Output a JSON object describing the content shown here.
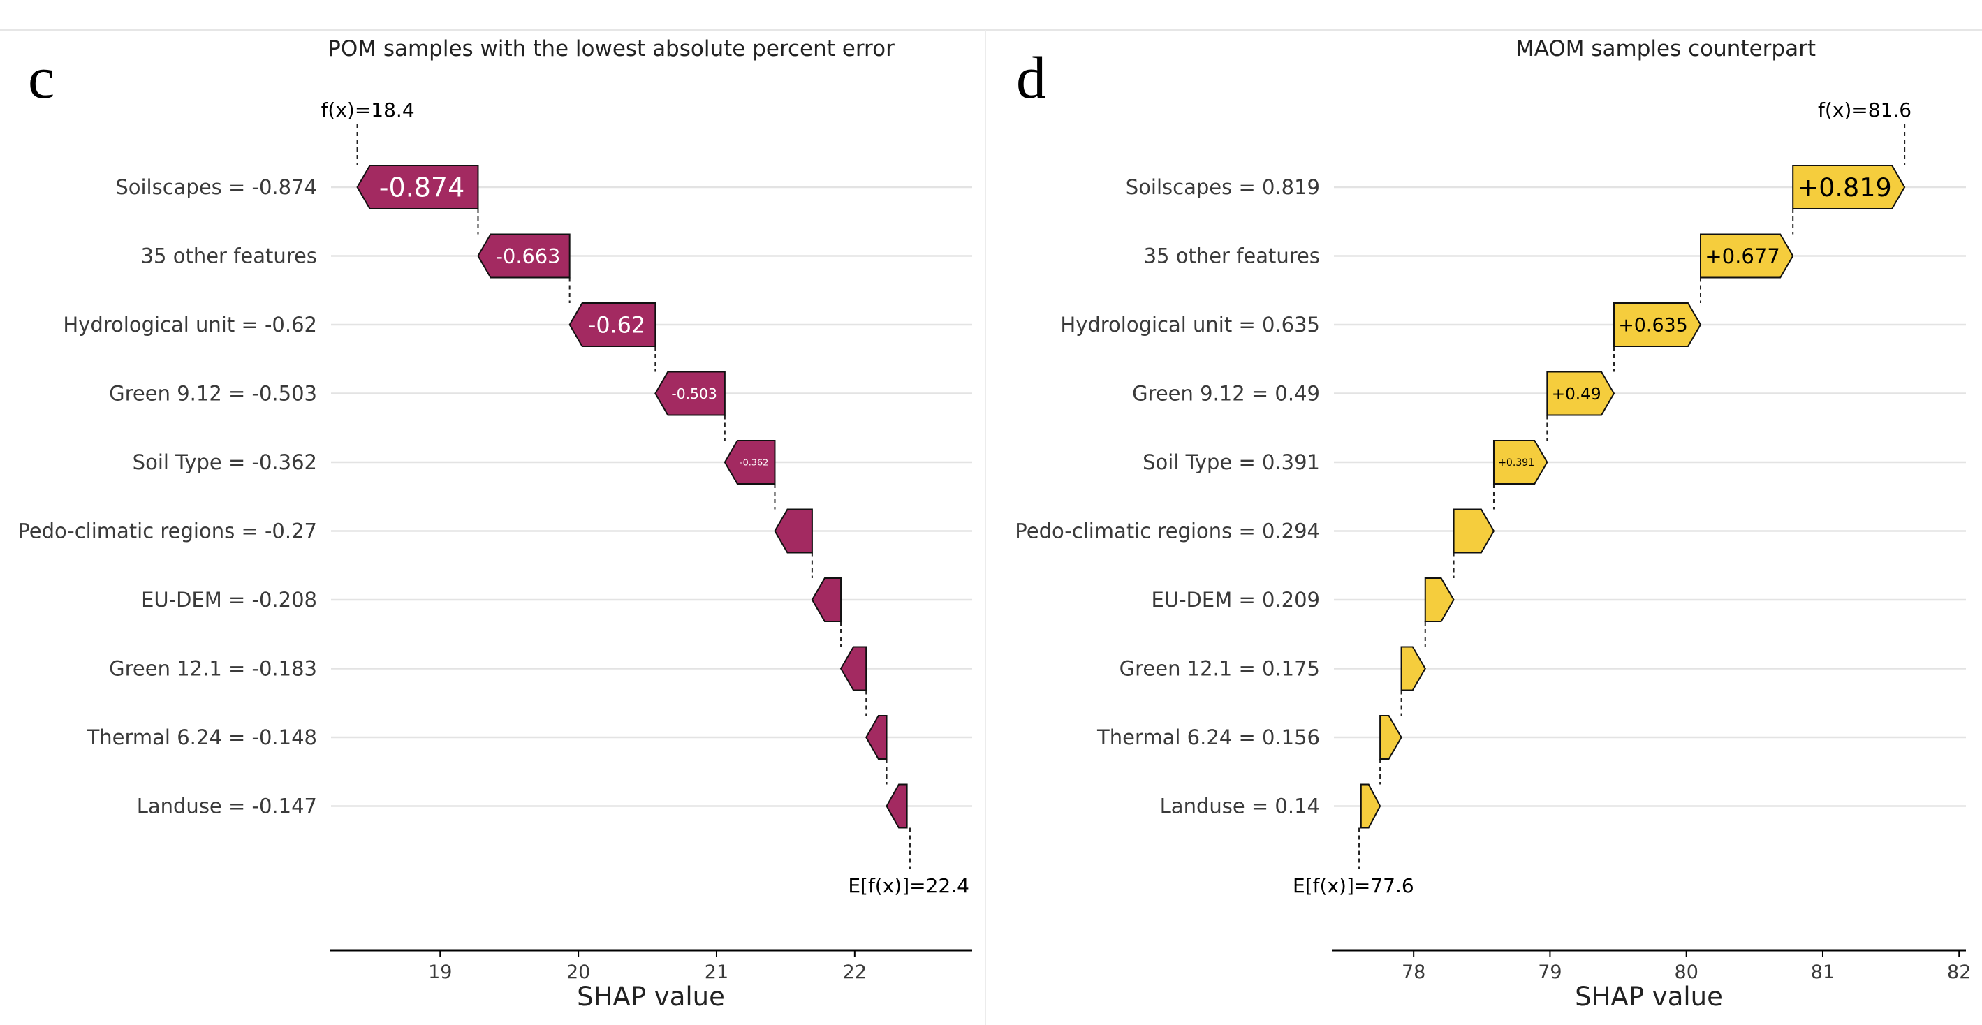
{
  "chart_data": [
    {
      "type": "waterfall",
      "panel_letter": "c",
      "title": "POM  samples with the lowest absolute percent error",
      "xlabel": "SHAP value",
      "xlim": [
        18.2,
        22.85
      ],
      "xticks": [
        "19",
        "20",
        "21",
        "22"
      ],
      "tick_values": [
        19,
        20,
        21,
        22
      ],
      "fx_label": "f(x)=18.4",
      "ex_label": "E[f(x)]=22.4",
      "fx": 18.4,
      "base": 22.4,
      "bar_color": "#a32a61",
      "features": [
        {
          "label": "Soilscapes = -0.874",
          "value": -0.874,
          "bar_text": "-0.874"
        },
        {
          "label": "35 other features",
          "value": -0.663,
          "bar_text": "-0.663"
        },
        {
          "label": "Hydrological unit = -0.62",
          "value": -0.62,
          "bar_text": "-0.62"
        },
        {
          "label": "Green 9.12 = -0.503",
          "value": -0.503,
          "bar_text": "-0.503"
        },
        {
          "label": "Soil Type = -0.362",
          "value": -0.362,
          "bar_text": "-0.362"
        },
        {
          "label": "Pedo-climatic regions = -0.27",
          "value": -0.27,
          "bar_text": ""
        },
        {
          "label": "EU-DEM = -0.208",
          "value": -0.208,
          "bar_text": ""
        },
        {
          "label": "Green 12.1 = -0.183",
          "value": -0.183,
          "bar_text": ""
        },
        {
          "label": "Thermal 6.24 = -0.148",
          "value": -0.148,
          "bar_text": ""
        },
        {
          "label": "Landuse = -0.147",
          "value": -0.147,
          "bar_text": ""
        }
      ]
    },
    {
      "type": "waterfall",
      "panel_letter": "d",
      "title": "MAOM samples counterpart",
      "xlabel": "SHAP value",
      "xlim": [
        77.4,
        82.05
      ],
      "xticks": [
        "78",
        "79",
        "80",
        "81",
        "82"
      ],
      "tick_values": [
        78,
        79,
        80,
        81,
        82
      ],
      "fx_label": "f(x)=81.6",
      "ex_label": "E[f(x)]=77.6",
      "fx": 81.6,
      "base": 77.6,
      "bar_color": "#f5cd3d",
      "features": [
        {
          "label": "Soilscapes = 0.819",
          "value": 0.819,
          "bar_text": "+0.819"
        },
        {
          "label": "35 other features",
          "value": 0.677,
          "bar_text": "+0.677"
        },
        {
          "label": "Hydrological unit = 0.635",
          "value": 0.635,
          "bar_text": "+0.635"
        },
        {
          "label": "Green 9.12 = 0.49",
          "value": 0.49,
          "bar_text": "+0.49"
        },
        {
          "label": "Soil Type = 0.391",
          "value": 0.391,
          "bar_text": "+0.391"
        },
        {
          "label": "Pedo-climatic regions = 0.294",
          "value": 0.294,
          "bar_text": ""
        },
        {
          "label": "EU-DEM = 0.209",
          "value": 0.209,
          "bar_text": ""
        },
        {
          "label": "Green 12.1 = 0.175",
          "value": 0.175,
          "bar_text": ""
        },
        {
          "label": "Thermal 6.24 = 0.156",
          "value": 0.156,
          "bar_text": ""
        },
        {
          "label": "Landuse = 0.14",
          "value": 0.14,
          "bar_text": ""
        }
      ]
    }
  ]
}
